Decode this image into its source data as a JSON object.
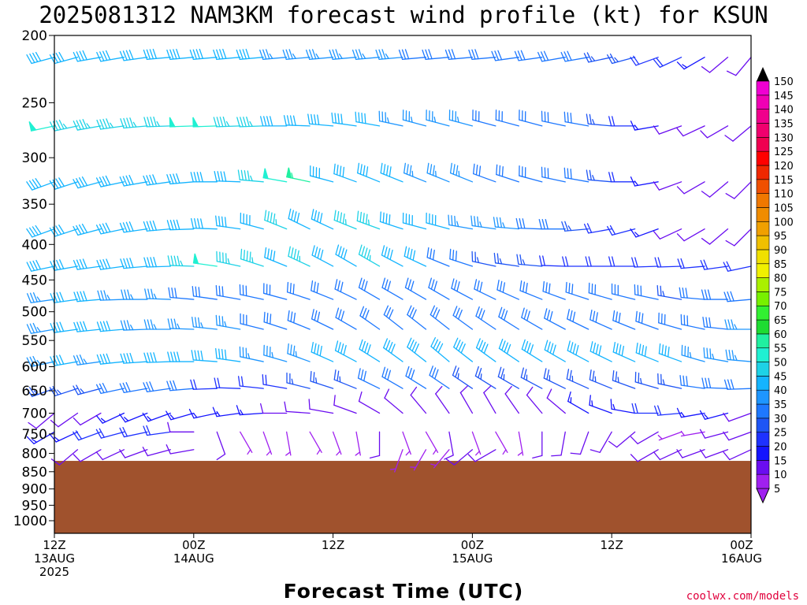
{
  "chart_data": {
    "type": "wind-barb-time-height",
    "title": "2025081312 NAM3KM forecast wind profile (kt) for KSUN",
    "xlabel": "Forecast Time (UTC)",
    "credit": "coolwx.com/models",
    "units": "kt",
    "y_axis": {
      "quantity": "pressure (hPa)",
      "scale": "log",
      "range": [
        1000,
        200
      ],
      "ticks": [
        200,
        250,
        300,
        350,
        400,
        450,
        500,
        550,
        600,
        650,
        700,
        750,
        800,
        850,
        900,
        950,
        1000
      ]
    },
    "x_axis": {
      "range_hours": [
        0,
        60
      ],
      "ticks": [
        {
          "hour": 0,
          "label1": "12Z",
          "label2": "13AUG",
          "label3": "2025"
        },
        {
          "hour": 12,
          "label1": "00Z",
          "label2": "14AUG",
          "label3": ""
        },
        {
          "hour": 24,
          "label1": "12Z",
          "label2": "",
          "label3": ""
        },
        {
          "hour": 36,
          "label1": "00Z",
          "label2": "15AUG",
          "label3": ""
        },
        {
          "hour": 48,
          "label1": "12Z",
          "label2": "",
          "label3": ""
        },
        {
          "hour": 60,
          "label1": "00Z",
          "label2": "16AUG",
          "label3": ""
        }
      ]
    },
    "ground_pressure": 820,
    "ground_color": "#a0522d",
    "levels": [
      215,
      270,
      325,
      380,
      430,
      480,
      530,
      590,
      645,
      700,
      745,
      790
    ],
    "hour_step": 2,
    "colorbar": {
      "values": [
        5,
        10,
        15,
        20,
        25,
        30,
        35,
        40,
        45,
        50,
        55,
        60,
        65,
        70,
        75,
        80,
        85,
        90,
        95,
        100,
        105,
        110,
        115,
        120,
        125,
        130,
        135,
        140,
        145,
        150
      ],
      "colors": [
        "#a020f0",
        "#6a0df0",
        "#1414ff",
        "#1e32ff",
        "#1e55f5",
        "#1e78ff",
        "#1e96ff",
        "#14b4ff",
        "#1ed2e6",
        "#20f0d2",
        "#20f0a0",
        "#1edc32",
        "#32f032",
        "#78f000",
        "#aaf000",
        "#f0f000",
        "#f0e000",
        "#f0c000",
        "#f0a000",
        "#f08c00",
        "#f07800",
        "#f05000",
        "#f02800",
        "#ff0000",
        "#f00050",
        "#f0006e",
        "#f0008c",
        "#f000b4",
        "#f000d2",
        "#f000f0"
      ]
    },
    "speeds_kt": [
      [
        42,
        42,
        42,
        41,
        39,
        38,
        38,
        38,
        38,
        38,
        36,
        36,
        36,
        34,
        34,
        34,
        32,
        32,
        32,
        32,
        30,
        30,
        28,
        28,
        26,
        24,
        22,
        20,
        16,
        12,
        10
      ],
      [
        50,
        46,
        44,
        44,
        44,
        46,
        48,
        48,
        46,
        44,
        42,
        40,
        40,
        38,
        38,
        36,
        36,
        34,
        34,
        32,
        32,
        30,
        30,
        28,
        24,
        20,
        16,
        12,
        10,
        8,
        8
      ],
      [
        42,
        40,
        40,
        40,
        40,
        40,
        42,
        42,
        42,
        46,
        52,
        55,
        42,
        38,
        38,
        38,
        36,
        36,
        34,
        32,
        32,
        30,
        30,
        28,
        24,
        20,
        16,
        12,
        10,
        8,
        8
      ],
      [
        40,
        42,
        42,
        40,
        40,
        40,
        40,
        40,
        42,
        42,
        44,
        42,
        40,
        46,
        44,
        42,
        40,
        38,
        36,
        34,
        34,
        32,
        30,
        26,
        22,
        18,
        14,
        12,
        10,
        8,
        8
      ],
      [
        38,
        40,
        42,
        42,
        42,
        42,
        44,
        48,
        46,
        44,
        42,
        44,
        42,
        42,
        46,
        40,
        38,
        32,
        28,
        26,
        24,
        24,
        22,
        22,
        22,
        22,
        22,
        22,
        22,
        20,
        18
      ],
      [
        36,
        38,
        38,
        36,
        34,
        34,
        32,
        30,
        30,
        30,
        30,
        30,
        28,
        28,
        28,
        28,
        28,
        28,
        28,
        28,
        28,
        28,
        28,
        28,
        28,
        28,
        28,
        26,
        28,
        28,
        30
      ],
      [
        36,
        38,
        38,
        38,
        36,
        36,
        34,
        34,
        34,
        32,
        32,
        32,
        32,
        32,
        32,
        32,
        32,
        32,
        32,
        32,
        30,
        30,
        30,
        30,
        28,
        28,
        28,
        30,
        30,
        30,
        36
      ],
      [
        36,
        38,
        36,
        38,
        38,
        40,
        38,
        38,
        38,
        36,
        36,
        36,
        38,
        38,
        40,
        40,
        40,
        42,
        40,
        40,
        40,
        42,
        40,
        40,
        40,
        38,
        38,
        38,
        36,
        34,
        36
      ],
      [
        26,
        26,
        26,
        28,
        28,
        28,
        28,
        22,
        22,
        22,
        22,
        24,
        26,
        26,
        28,
        28,
        28,
        28,
        26,
        24,
        24,
        24,
        24,
        26,
        26,
        26,
        26,
        26,
        28,
        28,
        30
      ],
      [
        10,
        12,
        12,
        14,
        16,
        16,
        16,
        16,
        16,
        16,
        12,
        12,
        10,
        8,
        8,
        8,
        8,
        8,
        8,
        8,
        8,
        12,
        12,
        14,
        14,
        16,
        18,
        18,
        16,
        14,
        12
      ],
      [
        14,
        16,
        18,
        20,
        20,
        18,
        8,
        8,
        6,
        6,
        6,
        6,
        6,
        6,
        8,
        6,
        6,
        8,
        6,
        6,
        6,
        8,
        8,
        10,
        10,
        8,
        8,
        6,
        6,
        8,
        8
      ],
      [
        0,
        8,
        10,
        12,
        10,
        10,
        12,
        0,
        0,
        0,
        0,
        0,
        0,
        0,
        0,
        6,
        6,
        6,
        8,
        8,
        0,
        0,
        0,
        0,
        0,
        0,
        10,
        10,
        10,
        10,
        12
      ]
    ],
    "directions_deg": [
      [
        255,
        255,
        260,
        260,
        262,
        265,
        265,
        265,
        265,
        265,
        265,
        265,
        265,
        265,
        265,
        265,
        265,
        265,
        265,
        265,
        262,
        262,
        260,
        260,
        258,
        255,
        250,
        245,
        240,
        230,
        220
      ],
      [
        258,
        258,
        260,
        262,
        265,
        268,
        268,
        268,
        268,
        268,
        270,
        272,
        275,
        278,
        280,
        282,
        285,
        285,
        285,
        285,
        285,
        285,
        282,
        280,
        275,
        270,
        260,
        250,
        245,
        240,
        230
      ],
      [
        250,
        252,
        255,
        258,
        260,
        262,
        265,
        270,
        272,
        275,
        280,
        282,
        285,
        290,
        292,
        292,
        292,
        292,
        292,
        290,
        288,
        285,
        282,
        280,
        275,
        270,
        260,
        250,
        240,
        230,
        225
      ],
      [
        250,
        252,
        255,
        258,
        262,
        265,
        268,
        272,
        278,
        285,
        292,
        296,
        295,
        292,
        290,
        288,
        285,
        285,
        280,
        278,
        275,
        272,
        270,
        265,
        260,
        255,
        250,
        245,
        240,
        230,
        225
      ],
      [
        258,
        260,
        262,
        262,
        265,
        268,
        272,
        278,
        282,
        288,
        292,
        295,
        298,
        300,
        300,
        298,
        295,
        292,
        288,
        282,
        278,
        275,
        272,
        270,
        270,
        270,
        268,
        268,
        265,
        262,
        258
      ],
      [
        262,
        262,
        265,
        268,
        270,
        272,
        275,
        278,
        280,
        282,
        285,
        288,
        292,
        296,
        300,
        300,
        300,
        300,
        298,
        296,
        294,
        292,
        290,
        288,
        286,
        284,
        282,
        280,
        275,
        270,
        265
      ],
      [
        260,
        262,
        264,
        265,
        268,
        270,
        272,
        276,
        280,
        284,
        288,
        292,
        296,
        300,
        305,
        308,
        308,
        308,
        306,
        304,
        302,
        300,
        298,
        296,
        294,
        292,
        290,
        286,
        282,
        276,
        270
      ],
      [
        258,
        260,
        262,
        264,
        266,
        268,
        270,
        274,
        278,
        282,
        286,
        290,
        294,
        298,
        302,
        306,
        308,
        310,
        308,
        306,
        304,
        302,
        300,
        298,
        296,
        294,
        292,
        290,
        286,
        280,
        275
      ],
      [
        250,
        252,
        255,
        258,
        260,
        262,
        265,
        268,
        272,
        276,
        280,
        284,
        288,
        292,
        296,
        300,
        302,
        304,
        304,
        302,
        300,
        298,
        296,
        294,
        292,
        290,
        286,
        282,
        278,
        272,
        268
      ],
      [
        230,
        235,
        240,
        245,
        248,
        250,
        254,
        258,
        262,
        266,
        270,
        274,
        280,
        290,
        300,
        310,
        320,
        325,
        330,
        330,
        325,
        320,
        310,
        300,
        290,
        280,
        270,
        265,
        260,
        255,
        250
      ],
      [
        240,
        245,
        250,
        255,
        258,
        262,
        270,
        160,
        150,
        160,
        170,
        150,
        160,
        170,
        180,
        160,
        150,
        170,
        160,
        150,
        170,
        180,
        190,
        200,
        210,
        230,
        240,
        250,
        260,
        255,
        250
      ],
      [
        0,
        230,
        240,
        245,
        250,
        255,
        260,
        0,
        0,
        0,
        0,
        0,
        0,
        0,
        0,
        200,
        210,
        220,
        230,
        240,
        0,
        0,
        0,
        0,
        0,
        0,
        240,
        245,
        250,
        250,
        245
      ]
    ]
  }
}
